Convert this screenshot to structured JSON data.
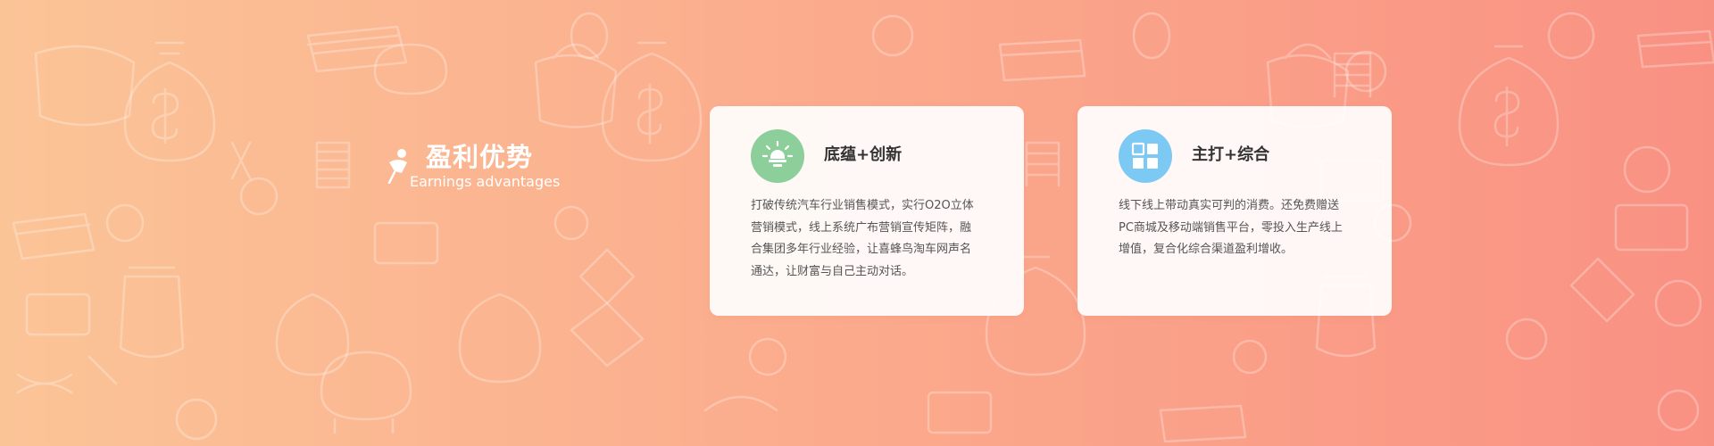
{
  "section": {
    "title": "盈利优势",
    "subtitle": "Earnings advantages",
    "icon": "pen-badge-icon"
  },
  "background": {
    "gradient_start": "#fbc497",
    "gradient_end": "#f99183",
    "pattern": "money-doodle-pattern"
  },
  "cards": [
    {
      "title": "底蕴+创新",
      "icon": "lightbulb-icon",
      "icon_color": "#8dcf9a",
      "lines": [
        "打破传统汽车行业销售模式，实行O2O立体",
        "营销模式，线上系统广布营销宣传矩阵，融",
        "合集团多年行业经验，让喜蜂鸟淘车网声名",
        "通达，让财富与自己主动对话。"
      ]
    },
    {
      "title": "主打+综合",
      "icon": "grid-icon",
      "icon_color": "#7ccaf3",
      "lines": [
        "线下线上带动真实可判的消费。还免费赠送",
        "PC商城及移动端销售平台，零投入生产线上",
        "增值，复合化综合渠道盈利增收。"
      ]
    }
  ]
}
